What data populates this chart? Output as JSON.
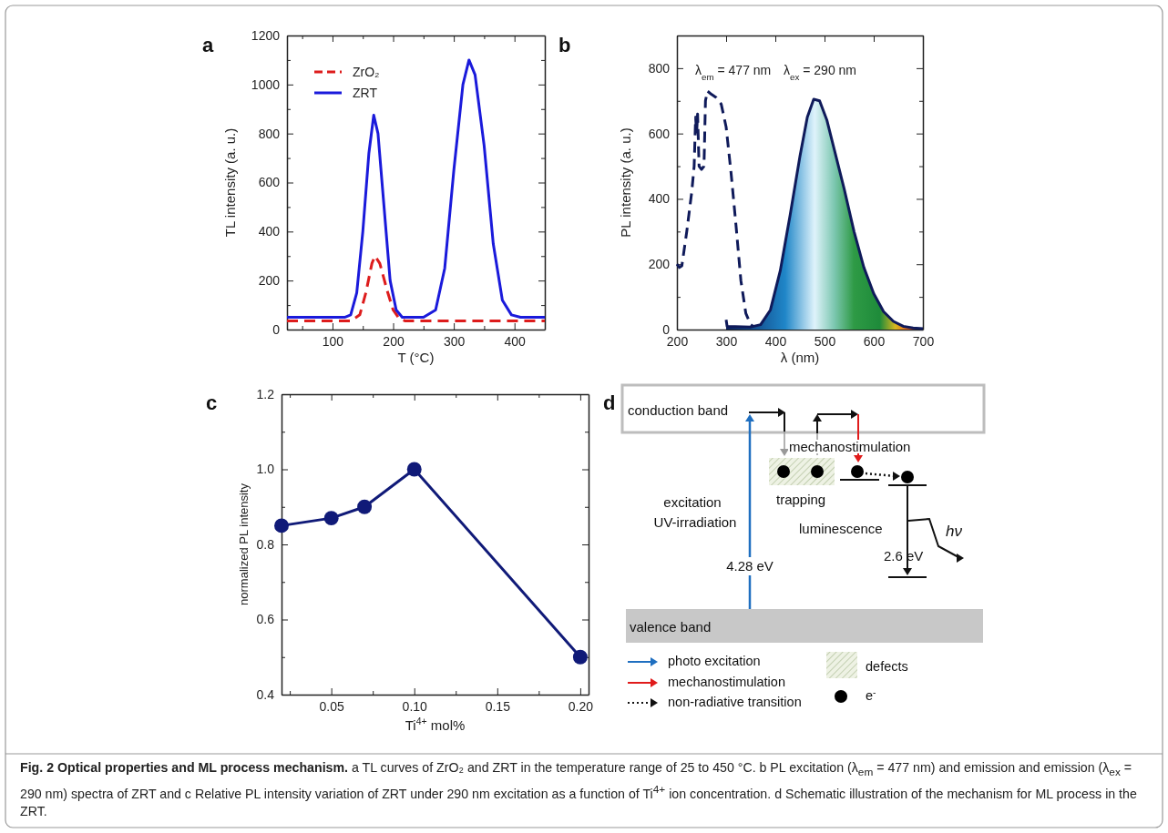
{
  "chart_data": [
    {
      "type": "line",
      "title": "a",
      "xlabel": "T (°C)",
      "ylabel": "TL intensity (a. u.)",
      "xlim": [
        25,
        450
      ],
      "ylim": [
        0,
        1200
      ],
      "xticks": [
        {
          "value": 50,
          "label": null
        },
        100,
        {
          "value": 150,
          "label": null
        },
        200,
        {
          "value": 250,
          "label": null
        },
        300,
        {
          "value": 350,
          "label": null
        },
        400
      ],
      "yticks": [
        0,
        {
          "value": 100,
          "label": null
        },
        200,
        {
          "value": 300,
          "label": null
        },
        400,
        {
          "value": 500,
          "label": null
        },
        600,
        {
          "value": 700,
          "label": null
        },
        800,
        {
          "value": 900,
          "label": null
        },
        1000,
        {
          "value": 1100,
          "label": null
        },
        1200
      ],
      "legend": "top left",
      "series": [
        {
          "name": "ZrO₂",
          "color": "#dd1c1c",
          "line_style": "dashed",
          "x": [
            25,
            130,
            145,
            155,
            165,
            170,
            178,
            190,
            200,
            210,
            220,
            450
          ],
          "values": [
            35,
            35,
            60,
            150,
            270,
            300,
            270,
            160,
            80,
            45,
            35,
            35
          ]
        },
        {
          "name": "ZRT",
          "color": "#1a1adb",
          "line_style": "solid",
          "x": [
            25,
            120,
            130,
            140,
            150,
            160,
            168,
            175,
            185,
            195,
            205,
            215,
            250,
            270,
            285,
            300,
            315,
            325,
            335,
            350,
            365,
            380,
            395,
            410,
            450
          ],
          "values": [
            50,
            50,
            60,
            150,
            400,
            720,
            875,
            800,
            500,
            200,
            80,
            50,
            50,
            80,
            250,
            650,
            1000,
            1100,
            1040,
            750,
            350,
            120,
            60,
            50,
            50
          ]
        }
      ]
    },
    {
      "type": "line",
      "title": "b",
      "xlabel": "λ (nm)",
      "ylabel": "PL intensity (a. u.)",
      "xlim": [
        200,
        700
      ],
      "ylim": [
        0,
        900
      ],
      "xticks": [
        200,
        300,
        400,
        500,
        600,
        700
      ],
      "yticks": [
        0,
        {
          "value": 100,
          "label": null
        },
        200,
        {
          "value": 300,
          "label": null
        },
        400,
        {
          "value": 500,
          "label": null
        },
        600,
        {
          "value": 700,
          "label": null
        },
        800
      ],
      "annotations": [
        "λ$_{em}$ = 477 nm",
        "λ$_{ex}$ = 290 nm"
      ],
      "series": [
        {
          "type": "line",
          "color": "#0f1a5a",
          "line_style": "dashed",
          "x": [
            200,
            205,
            210,
            220,
            230,
            235,
            238,
            240,
            242,
            245,
            250,
            255,
            258,
            262,
            270,
            280,
            290,
            300,
            310,
            320,
            330,
            340,
            350,
            360
          ],
          "values": [
            200,
            190,
            195,
            300,
            420,
            500,
            650,
            600,
            660,
            500,
            490,
            500,
            700,
            730,
            720,
            710,
            690,
            620,
            480,
            320,
            150,
            50,
            15,
            5
          ]
        },
        {
          "type": "area",
          "color": "#0f1a5a",
          "line_style": "solid",
          "x": [
            300,
            302,
            350,
            370,
            390,
            410,
            430,
            450,
            465,
            478,
            490,
            505,
            520,
            540,
            560,
            580,
            600,
            620,
            640,
            660,
            680,
            700
          ],
          "values": [
            30,
            10,
            8,
            15,
            60,
            180,
            350,
            530,
            650,
            705,
            700,
            640,
            550,
            430,
            300,
            190,
            110,
            55,
            25,
            10,
            5,
            3
          ]
        }
      ]
    },
    {
      "type": "line",
      "title": "c",
      "xlabel": "Ti$^{4+}$ mol%",
      "ylabel": "normalized PL intensity",
      "xlim": [
        0.02,
        0.205
      ],
      "ylim": [
        0.4,
        1.2
      ],
      "xticks": [
        {
          "value": 0.025,
          "label": null
        },
        0.05,
        {
          "value": 0.075,
          "label": null
        },
        {
          "value": 0.1,
          "label": "0.10"
        },
        {
          "value": 0.125,
          "label": null
        },
        0.15,
        {
          "value": 0.175,
          "label": null
        },
        {
          "value": 0.2,
          "label": "0.20"
        }
      ],
      "yticks": [
        0.4,
        {
          "value": 0.5,
          "label": null
        },
        0.6,
        {
          "value": 0.7,
          "label": null
        },
        0.8,
        {
          "value": 0.9,
          "label": null
        },
        {
          "value": 1.0,
          "label": "1.0"
        },
        {
          "value": 1.1,
          "label": null
        },
        1.2
      ],
      "marker": "circle",
      "series": [
        {
          "color": "#101a78",
          "x": [
            0.02,
            0.05,
            0.07,
            0.1,
            0.2
          ],
          "values": [
            0.85,
            0.87,
            0.9,
            1.0,
            0.5
          ]
        }
      ]
    },
    {
      "type": "other",
      "title": "d",
      "annotations": [
        "conduction band",
        "mechanostimulation",
        "trapping",
        "excitation",
        "UV-irradiation",
        "luminescence",
        "hν",
        "2.6 eV",
        "4.28 eV",
        "valence band",
        "photo excitation",
        "mechanostimulation",
        "non-radiative transition",
        "defects",
        "e$^{-}$",
        "Fig. 2 Optical properties and ML process mechanism.",
        "a TL curves of ZrO₂ and ZRT in the temperature range of 25 to 450 °C. b PL excitation (λ$_{em}$ = 477 nm) and emission and emission (λ$_{ex}$ = 290 nm) spectra of ZRT and c Relative PL intensity variation of ZRT under 290 nm excitation as a function of Ti$^{4+}$ ion concentration. d Schematic illustration of the mechanism for ML process in the ZRT."
      ]
    }
  ]
}
